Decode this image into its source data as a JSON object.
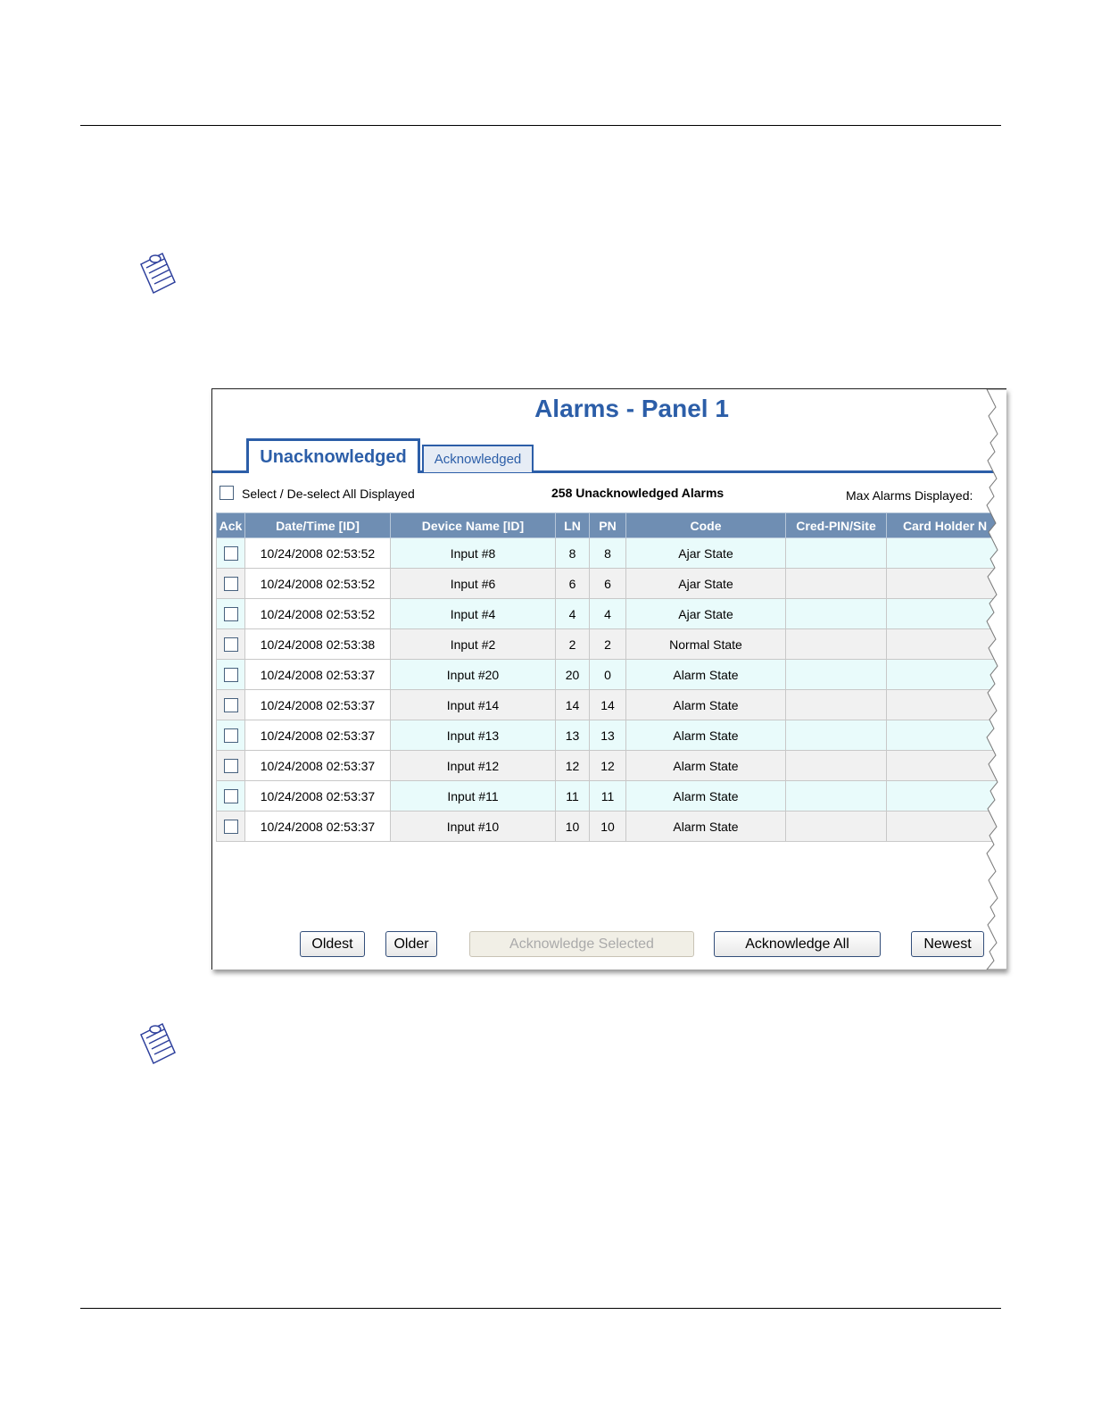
{
  "window": {
    "title": "Alarms - Panel 1",
    "tabs": [
      "Unacknowledged",
      "Acknowledged"
    ],
    "select_all": "Select / De-select All Displayed",
    "count_label": "258 Unacknowledged Alarms",
    "max_label": "Max Alarms Displayed:"
  },
  "table": {
    "columns": [
      "Ack",
      "Date/Time  [ID]",
      "Device Name  [ID]",
      "LN",
      "PN",
      "Code",
      "Cred-PIN/Site",
      "Card Holder N"
    ],
    "rows": [
      [
        "10/24/2008 02:53:52",
        "Input #8",
        8,
        8,
        "Ajar State"
      ],
      [
        "10/24/2008 02:53:52",
        "Input #6",
        6,
        6,
        "Ajar State"
      ],
      [
        "10/24/2008 02:53:52",
        "Input #4",
        4,
        4,
        "Ajar State"
      ],
      [
        "10/24/2008 02:53:38",
        "Input #2",
        2,
        2,
        "Normal State"
      ],
      [
        "10/24/2008 02:53:37",
        "Input #20",
        20,
        0,
        "Alarm State"
      ],
      [
        "10/24/2008 02:53:37",
        "Input #14",
        14,
        14,
        "Alarm State"
      ],
      [
        "10/24/2008 02:53:37",
        "Input #13",
        13,
        13,
        "Alarm State"
      ],
      [
        "10/24/2008 02:53:37",
        "Input #12",
        12,
        12,
        "Alarm State"
      ],
      [
        "10/24/2008 02:53:37",
        "Input #11",
        11,
        11,
        "Alarm State"
      ],
      [
        "10/24/2008 02:53:37",
        "Input #10",
        10,
        10,
        "Alarm State"
      ]
    ]
  },
  "buttons": [
    "Oldest",
    "Older",
    "Acknowledge Selected",
    "Acknowledge All",
    "Newest"
  ]
}
